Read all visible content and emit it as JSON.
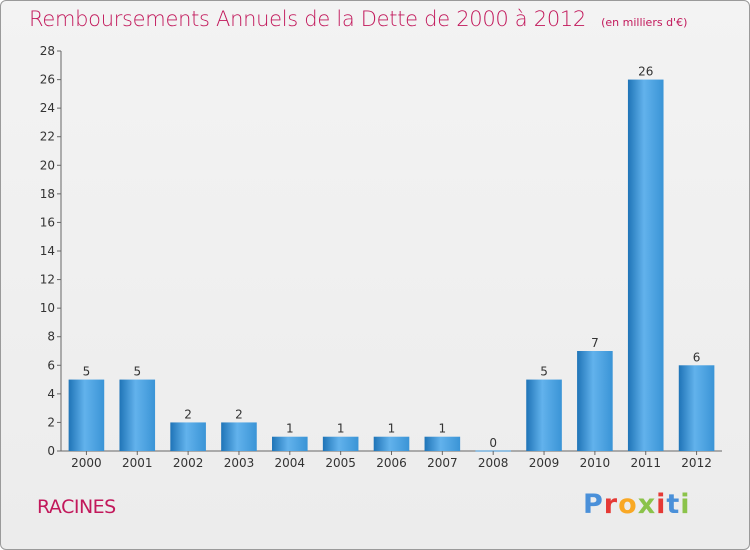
{
  "title": "Remboursements Annuels de la Dette de 2000 à 2012",
  "subtitle": "(en milliers d'€)",
  "commune": "RACINES",
  "logo": {
    "text": "Proxiti",
    "colors": [
      "#4a90d9",
      "#e53935",
      "#f9a825",
      "#8bc34a",
      "#e53935",
      "#4a90d9",
      "#8bc34a"
    ]
  },
  "colors": {
    "bar": "#3a94d6",
    "bar_light": "#62b2ec",
    "bar_dark": "#1f74b7",
    "title": "#c2185b"
  },
  "chart_data": {
    "type": "bar",
    "categories": [
      "2000",
      "2001",
      "2002",
      "2003",
      "2004",
      "2005",
      "2006",
      "2007",
      "2008",
      "2009",
      "2010",
      "2011",
      "2012"
    ],
    "values": [
      5,
      5,
      2,
      2,
      1,
      1,
      1,
      1,
      0,
      5,
      7,
      26,
      6
    ],
    "ylim": [
      0,
      28
    ],
    "yticks": [
      0,
      2,
      4,
      6,
      8,
      10,
      12,
      14,
      16,
      18,
      20,
      22,
      24,
      26,
      28
    ],
    "grid": false,
    "data_labels": true
  }
}
